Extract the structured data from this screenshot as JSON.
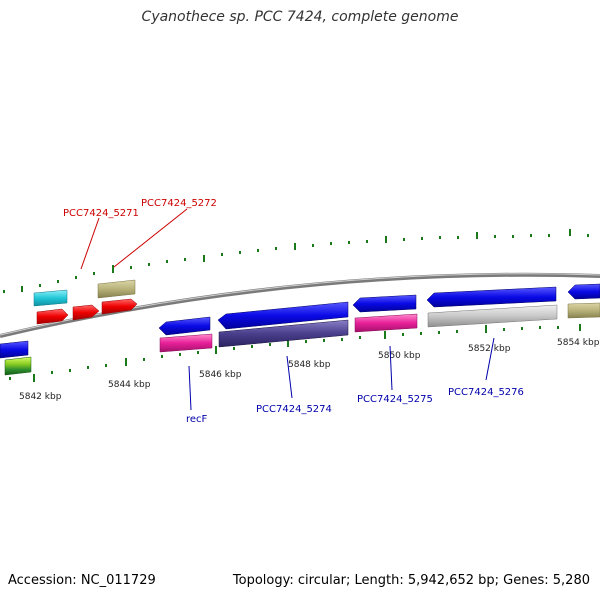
{
  "title": "Cyanothece sp. PCC 7424, complete genome",
  "footer": {
    "accession": "Accession: NC_011729",
    "topology": "Topology: circular; Length: 5,942,652 bp; Genes: 5,280"
  },
  "scale_labels": [
    "5842 kbp",
    "5844 kbp",
    "5846 kbp",
    "5848 kbp",
    "5850 kbp",
    "5852 kbp",
    "5854 kbp"
  ],
  "gene_labels_top": [
    "PCC7424_5271",
    "PCC7424_5272"
  ],
  "gene_labels_bottom": [
    "recF",
    "PCC7424_5274",
    "PCC7424_5275",
    "PCC7424_5276"
  ],
  "colors": {
    "top_label": "#cc0000",
    "bottom_label": "#0000aa",
    "backbone": "#7a7a7a",
    "tick": "#1a7a1a",
    "blue": "#0a0ae6",
    "red": "#ee0000",
    "cyan": "#22c8d8",
    "olive": "#b8b27a",
    "magenta": "#e8209a",
    "purple": "#4a3f8c",
    "gray": "#c8c8c8",
    "green": "#88cc22"
  }
}
